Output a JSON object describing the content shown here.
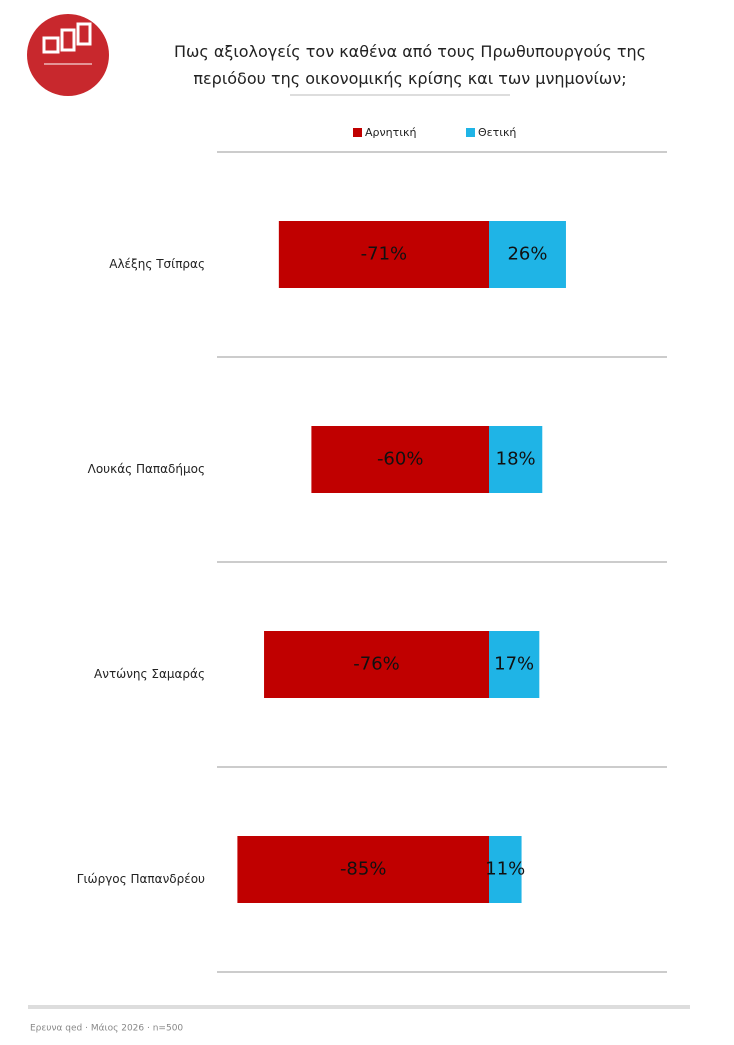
{
  "chart_data": {
    "type": "diverging-bar",
    "title": "Πως αξιολογείς τον καθένα από τους Πρωθυπουργούς της περιόδου της οικονομικής κρίσης και των μνημονίων;",
    "categories": [
      "Αλέξης Τσίπρας",
      "Λουκάς Παπαδήμος",
      "Αντώνης Σαμαράς",
      "Γιώργος Παπανδρέου"
    ],
    "series": [
      {
        "name": "Αρνητική",
        "color": "#c00000",
        "values": [
          -71,
          -60,
          -76,
          -85
        ],
        "value_labels": [
          "-71%",
          "-60%",
          "-76%",
          "-85%"
        ]
      },
      {
        "name": "Θετική",
        "color": "#1fb4e6",
        "values": [
          26,
          18,
          17,
          11
        ],
        "value_labels": [
          "26%",
          "18%",
          "17%",
          "11%"
        ]
      }
    ],
    "footer": "Ερευνα qed · Μάιος 2026 · n=500"
  }
}
